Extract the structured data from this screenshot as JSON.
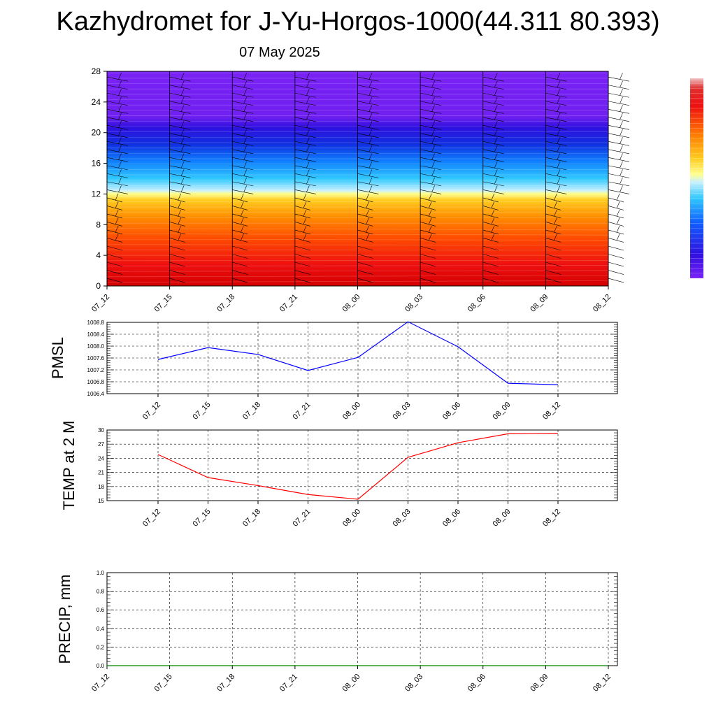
{
  "title": "Kazhydromet for J-Yu-Horgos-1000(44.311 80.393)",
  "date": "07 May 2025",
  "chart_data": [
    {
      "type": "heatmap",
      "description_label": "",
      "x_tick_labels": [
        "07_12",
        "07_15",
        "07_18",
        "07_21",
        "08_00",
        "08_03",
        "08_06",
        "08_09",
        "08_12"
      ],
      "y_tick_labels": [
        "0",
        "4",
        "8",
        "12",
        "16",
        "20",
        "24",
        "28"
      ],
      "ylim": [
        0,
        28
      ],
      "colormap_note": "red at bottom, orange, yellow near 12, cyan/blue 13-20, blue 20-22, purple above 22",
      "has_wind_barbs": true,
      "colorbar": true
    },
    {
      "type": "line",
      "ylabel": "PMSL",
      "x": [
        "07_12",
        "07_15",
        "07_18",
        "07_21",
        "08_00",
        "08_03",
        "08_06",
        "08_09",
        "08_12"
      ],
      "values": [
        1007.55,
        1007.95,
        1007.72,
        1007.18,
        1007.62,
        1008.82,
        1007.98,
        1006.75,
        1006.7
      ],
      "ylim": [
        1006.4,
        1008.8
      ],
      "y_ticks": [
        "1006.4",
        "1006.8",
        "1007.2",
        "1007.6",
        "1008.0",
        "1008.4",
        "1008.8"
      ],
      "color": "#0000ff",
      "grid": true
    },
    {
      "type": "line",
      "ylabel": "TEMP at 2 M",
      "x": [
        "07_12",
        "07_15",
        "07_18",
        "07_21",
        "08_00",
        "08_03",
        "08_06",
        "08_09",
        "08_12"
      ],
      "values": [
        24.8,
        19.9,
        18.2,
        16.3,
        15.3,
        24.2,
        27.3,
        29.2,
        29.3
      ],
      "ylim": [
        15,
        30
      ],
      "y_ticks": [
        "15",
        "18",
        "21",
        "24",
        "27",
        "30"
      ],
      "color": "#ff0000",
      "grid": true
    },
    {
      "type": "line",
      "ylabel": "PRECIP, mm",
      "x": [
        "07_12",
        "07_15",
        "07_18",
        "07_21",
        "08_00",
        "08_03",
        "08_06",
        "08_09",
        "08_12"
      ],
      "values": [
        0,
        0,
        0,
        0,
        0,
        0,
        0,
        0,
        0
      ],
      "ylim": [
        0,
        1.0
      ],
      "y_ticks": [
        "0.0",
        "0.2",
        "0.4",
        "0.6",
        "0.8",
        "1.0"
      ],
      "color": "#008000",
      "grid": true
    }
  ]
}
